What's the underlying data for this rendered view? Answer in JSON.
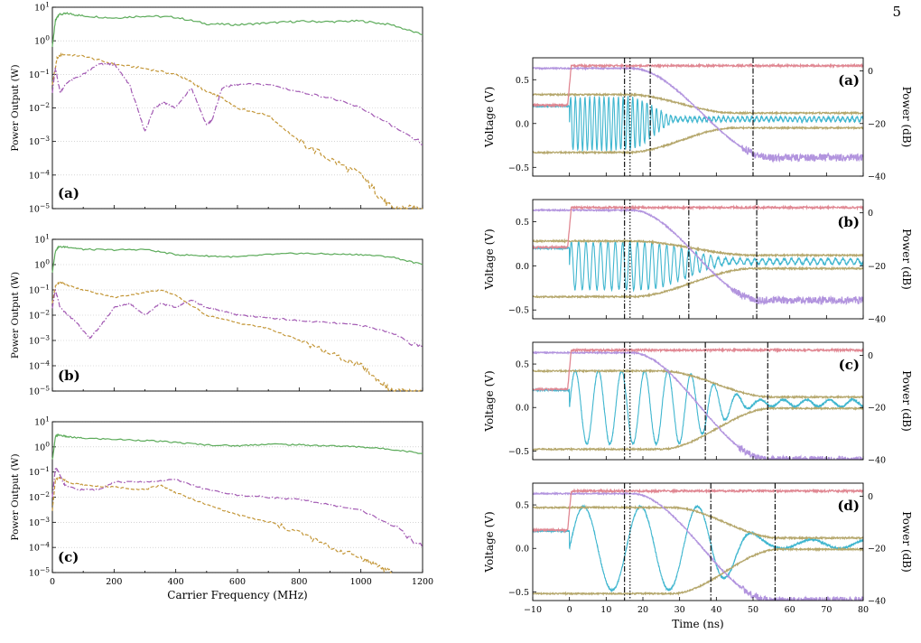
{
  "page": {
    "number": "5"
  },
  "colors": {
    "green": "#5cab5a",
    "orange": "#c39637",
    "purple": "#a259b3",
    "pink": "#e08792",
    "lavender": "#b294de",
    "cyan": "#3fb6cf",
    "tan": "#b5a76c",
    "grid": "#bdbdbd"
  },
  "chart_data": [
    {
      "type": "line",
      "panel": "(a)",
      "group": "left",
      "xlabel": "",
      "ylabel": "Power Output (W)",
      "ylog": true,
      "xlim": [
        0,
        1200
      ],
      "ylim": [
        1e-05,
        10
      ],
      "yticks": [
        "10^1",
        "10^0",
        "10^-1",
        "10^-2",
        "10^-3",
        "10^-4",
        "10^-5"
      ],
      "series": [
        {
          "color": "green",
          "style": "solid",
          "x": [
            0,
            10,
            20,
            50,
            100,
            200,
            300,
            400,
            500,
            600,
            700,
            800,
            900,
            1000,
            1100,
            1200
          ],
          "y": [
            0.7,
            4.0,
            6.0,
            6.5,
            5.5,
            4.8,
            5.5,
            5.0,
            3.2,
            3.0,
            3.4,
            3.8,
            3.7,
            3.9,
            3.0,
            1.5
          ]
        },
        {
          "color": "orange",
          "style": "dashed",
          "x": [
            0,
            15,
            30,
            100,
            200,
            300,
            400,
            450,
            500,
            550,
            600,
            700,
            800,
            900,
            1000,
            1050,
            1100,
            1150,
            1200
          ],
          "y": [
            0.05,
            0.3,
            0.4,
            0.35,
            0.2,
            0.15,
            0.1,
            0.06,
            0.03,
            0.02,
            0.01,
            0.006,
            0.001,
            0.0003,
            0.0001,
            3e-05,
            1e-05,
            1e-05,
            1e-05
          ]
        },
        {
          "color": "purple",
          "style": "dashdot",
          "x": [
            0,
            10,
            25,
            50,
            100,
            150,
            200,
            250,
            300,
            330,
            360,
            400,
            450,
            500,
            520,
            550,
            600,
            700,
            800,
            900,
            1000,
            1100,
            1200
          ],
          "y": [
            0.03,
            0.15,
            0.03,
            0.06,
            0.1,
            0.2,
            0.2,
            0.05,
            0.002,
            0.01,
            0.015,
            0.01,
            0.04,
            0.003,
            0.005,
            0.04,
            0.05,
            0.05,
            0.03,
            0.02,
            0.01,
            0.003,
            0.0008
          ]
        }
      ]
    },
    {
      "type": "line",
      "panel": "(b)",
      "group": "left",
      "xlabel": "",
      "ylabel": "Power Output (W)",
      "ylog": true,
      "xlim": [
        0,
        1200
      ],
      "ylim": [
        1e-05,
        10
      ],
      "yticks": [
        "10^1",
        "10^0",
        "10^-1",
        "10^-2",
        "10^-3",
        "10^-4",
        "10^-5"
      ],
      "series": [
        {
          "color": "green",
          "style": "solid",
          "x": [
            0,
            10,
            20,
            50,
            100,
            200,
            300,
            400,
            500,
            600,
            700,
            800,
            900,
            1000,
            1100,
            1200
          ],
          "y": [
            0.5,
            3.5,
            5.0,
            5.0,
            4.0,
            3.8,
            4.0,
            2.5,
            2.2,
            2.0,
            2.5,
            2.8,
            2.6,
            2.5,
            2.0,
            1.0
          ]
        },
        {
          "color": "orange",
          "style": "dashed",
          "x": [
            0,
            10,
            25,
            50,
            100,
            200,
            300,
            350,
            400,
            500,
            600,
            700,
            800,
            900,
            1000,
            1050,
            1100,
            1150,
            1200
          ],
          "y": [
            0.03,
            0.15,
            0.2,
            0.15,
            0.1,
            0.05,
            0.08,
            0.1,
            0.06,
            0.01,
            0.005,
            0.003,
            0.001,
            0.0003,
            0.0001,
            3e-05,
            1e-05,
            1e-05,
            1e-05
          ]
        },
        {
          "color": "purple",
          "style": "dashdot",
          "x": [
            0,
            10,
            25,
            50,
            80,
            120,
            150,
            200,
            250,
            300,
            350,
            400,
            450,
            500,
            550,
            600,
            700,
            800,
            900,
            1000,
            1100,
            1200
          ],
          "y": [
            0.02,
            0.1,
            0.02,
            0.01,
            0.005,
            0.0012,
            0.003,
            0.02,
            0.03,
            0.01,
            0.03,
            0.02,
            0.04,
            0.02,
            0.015,
            0.01,
            0.008,
            0.006,
            0.005,
            0.004,
            0.002,
            0.0005
          ]
        }
      ]
    },
    {
      "type": "line",
      "panel": "(c)",
      "group": "left",
      "xlabel": "Carrier Frequency (MHz)",
      "ylabel": "Power Output (W)",
      "ylog": true,
      "xlim": [
        0,
        1200
      ],
      "ylim": [
        1e-05,
        10
      ],
      "xticks": [
        "0",
        "200",
        "400",
        "600",
        "800",
        "1000",
        "1200"
      ],
      "yticks": [
        "10^1",
        "10^0",
        "10^-1",
        "10^-2",
        "10^-3",
        "10^-4",
        "10^-5"
      ],
      "series": [
        {
          "color": "green",
          "style": "solid",
          "x": [
            0,
            10,
            20,
            50,
            100,
            200,
            300,
            400,
            500,
            600,
            700,
            800,
            900,
            1000,
            1100,
            1200
          ],
          "y": [
            0.3,
            2.5,
            3.0,
            2.5,
            2.2,
            2.0,
            1.8,
            1.5,
            1.2,
            1.1,
            1.3,
            1.2,
            1.1,
            1.0,
            0.8,
            0.55
          ]
        },
        {
          "color": "orange",
          "style": "dashed",
          "x": [
            0,
            10,
            25,
            50,
            100,
            200,
            300,
            350,
            400,
            500,
            600,
            700,
            800,
            900,
            1000,
            1050,
            1100
          ],
          "y": [
            0.003,
            0.05,
            0.06,
            0.04,
            0.03,
            0.025,
            0.02,
            0.03,
            0.015,
            0.005,
            0.002,
            0.001,
            0.0004,
            0.0001,
            4e-05,
            2e-05,
            1e-05
          ]
        },
        {
          "color": "purple",
          "style": "dashdot",
          "x": [
            0,
            10,
            20,
            40,
            80,
            150,
            200,
            300,
            400,
            500,
            600,
            700,
            800,
            900,
            1000,
            1100,
            1200
          ],
          "y": [
            0.01,
            0.15,
            0.1,
            0.03,
            0.02,
            0.02,
            0.04,
            0.04,
            0.05,
            0.02,
            0.012,
            0.01,
            0.008,
            0.005,
            0.003,
            0.0008,
            0.0001
          ]
        }
      ]
    },
    {
      "type": "line",
      "panel": "(a)",
      "group": "right",
      "xlabel": "",
      "ylabel": "Voltage (V)",
      "ylabel_right": "Power (dB)",
      "xlim": [
        -10,
        80
      ],
      "ylim": [
        -0.6,
        0.75
      ],
      "ylim_right": [
        -40,
        5
      ],
      "yticks": [
        "0.5",
        "0.0",
        "−0.5"
      ],
      "yticks_right": [
        "0",
        "−20",
        "−40"
      ],
      "vlines": [
        {
          "x": 15,
          "style": "dashdot"
        },
        {
          "x": 16.5,
          "style": "dotted"
        },
        {
          "x": 22,
          "style": "dashdot"
        },
        {
          "x": 50,
          "style": "dashdot"
        }
      ],
      "pulse": {
        "period": 1.3,
        "amp_start": 0.3,
        "amp_floor": 0.025,
        "drop_start": 16,
        "drop_end": 30
      },
      "envelope": {
        "upper_start": 0.33,
        "upper_end": 0.12,
        "lower_start": -0.33,
        "lower_end": -0.05,
        "t0": 16,
        "t1": 45
      },
      "pink_db": {
        "pre": -13,
        "post": 2,
        "rise": [
          -1,
          0.5
        ]
      },
      "lavender_db": {
        "start": 1,
        "end": -33,
        "t0": 17,
        "t1": 55
      }
    },
    {
      "type": "line",
      "panel": "(b)",
      "group": "right",
      "xlabel": "",
      "ylabel": "Voltage (V)",
      "ylabel_right": "Power (dB)",
      "xlim": [
        -10,
        80
      ],
      "ylim": [
        -0.6,
        0.75
      ],
      "ylim_right": [
        -40,
        5
      ],
      "yticks": [
        "0.5",
        "0.0",
        "−0.5"
      ],
      "yticks_right": [
        "0",
        "−20",
        "−40"
      ],
      "vlines": [
        {
          "x": 15,
          "style": "dashdot"
        },
        {
          "x": 16.5,
          "style": "dotted"
        },
        {
          "x": 32.5,
          "style": "dashdot"
        },
        {
          "x": 51,
          "style": "dashdot"
        }
      ],
      "pulse": {
        "period": 2.0,
        "amp_start": 0.27,
        "amp_floor": 0.03,
        "drop_start": 20,
        "drop_end": 45
      },
      "envelope": {
        "upper_start": 0.28,
        "upper_end": 0.12,
        "lower_start": -0.35,
        "lower_end": -0.03,
        "t0": 17,
        "t1": 50
      },
      "pink_db": {
        "pre": -13,
        "post": 2,
        "rise": [
          -1,
          0.5
        ]
      },
      "lavender_db": {
        "start": 1,
        "end": -33,
        "t0": 17,
        "t1": 52
      }
    },
    {
      "type": "line",
      "panel": "(c)",
      "group": "right",
      "xlabel": "",
      "ylabel": "Voltage (V)",
      "ylabel_right": "Power (dB)",
      "xlim": [
        -10,
        80
      ],
      "ylim": [
        -0.6,
        0.75
      ],
      "ylim_right": [
        -40,
        5
      ],
      "yticks": [
        "0.5",
        "0.0",
        "−0.5"
      ],
      "yticks_right": [
        "0",
        "−20",
        "−40"
      ],
      "vlines": [
        {
          "x": 15,
          "style": "dashdot"
        },
        {
          "x": 16.5,
          "style": "dotted"
        },
        {
          "x": 37,
          "style": "dashdot"
        },
        {
          "x": 54,
          "style": "dashdot"
        }
      ],
      "pulse": {
        "period": 6.3,
        "amp_start": 0.42,
        "amp_floor": 0.04,
        "drop_start": 28,
        "drop_end": 52
      },
      "envelope": {
        "upper_start": 0.42,
        "upper_end": 0.12,
        "lower_start": -0.48,
        "lower_end": -0.01,
        "t0": 25,
        "t1": 55
      },
      "pink_db": {
        "pre": -13,
        "post": 2,
        "rise": [
          -1,
          0.5
        ]
      },
      "lavender_db": {
        "start": 1,
        "end": -40,
        "t0": 17,
        "t1": 54
      }
    },
    {
      "type": "line",
      "panel": "(d)",
      "group": "right",
      "xlabel": "Time (ns)",
      "ylabel": "Voltage (V)",
      "ylabel_right": "Power (dB)",
      "xlim": [
        -10,
        80
      ],
      "ylim": [
        -0.6,
        0.75
      ],
      "ylim_right": [
        -40,
        5
      ],
      "xticks": [
        "−10",
        "0",
        "10",
        "20",
        "30",
        "40",
        "50",
        "60",
        "70",
        "80"
      ],
      "yticks": [
        "0.5",
        "0.0",
        "−0.5"
      ],
      "yticks_right": [
        "0",
        "−20",
        "−40"
      ],
      "vlines": [
        {
          "x": 15,
          "style": "dashdot"
        },
        {
          "x": 16.5,
          "style": "dotted"
        },
        {
          "x": 38.5,
          "style": "dashdot"
        },
        {
          "x": 56,
          "style": "dashdot"
        }
      ],
      "pulse": {
        "period": 15.5,
        "amp_start": 0.48,
        "amp_floor": 0.05,
        "drop_start": 35,
        "drop_end": 56
      },
      "envelope": {
        "upper_start": 0.47,
        "upper_end": 0.12,
        "lower_start": -0.52,
        "lower_end": -0.01,
        "t0": 28,
        "t1": 57
      },
      "pink_db": {
        "pre": -13,
        "post": 2,
        "rise": [
          -1,
          0.5
        ]
      },
      "lavender_db": {
        "start": 1,
        "end": -40,
        "t0": 17,
        "t1": 55
      }
    }
  ]
}
